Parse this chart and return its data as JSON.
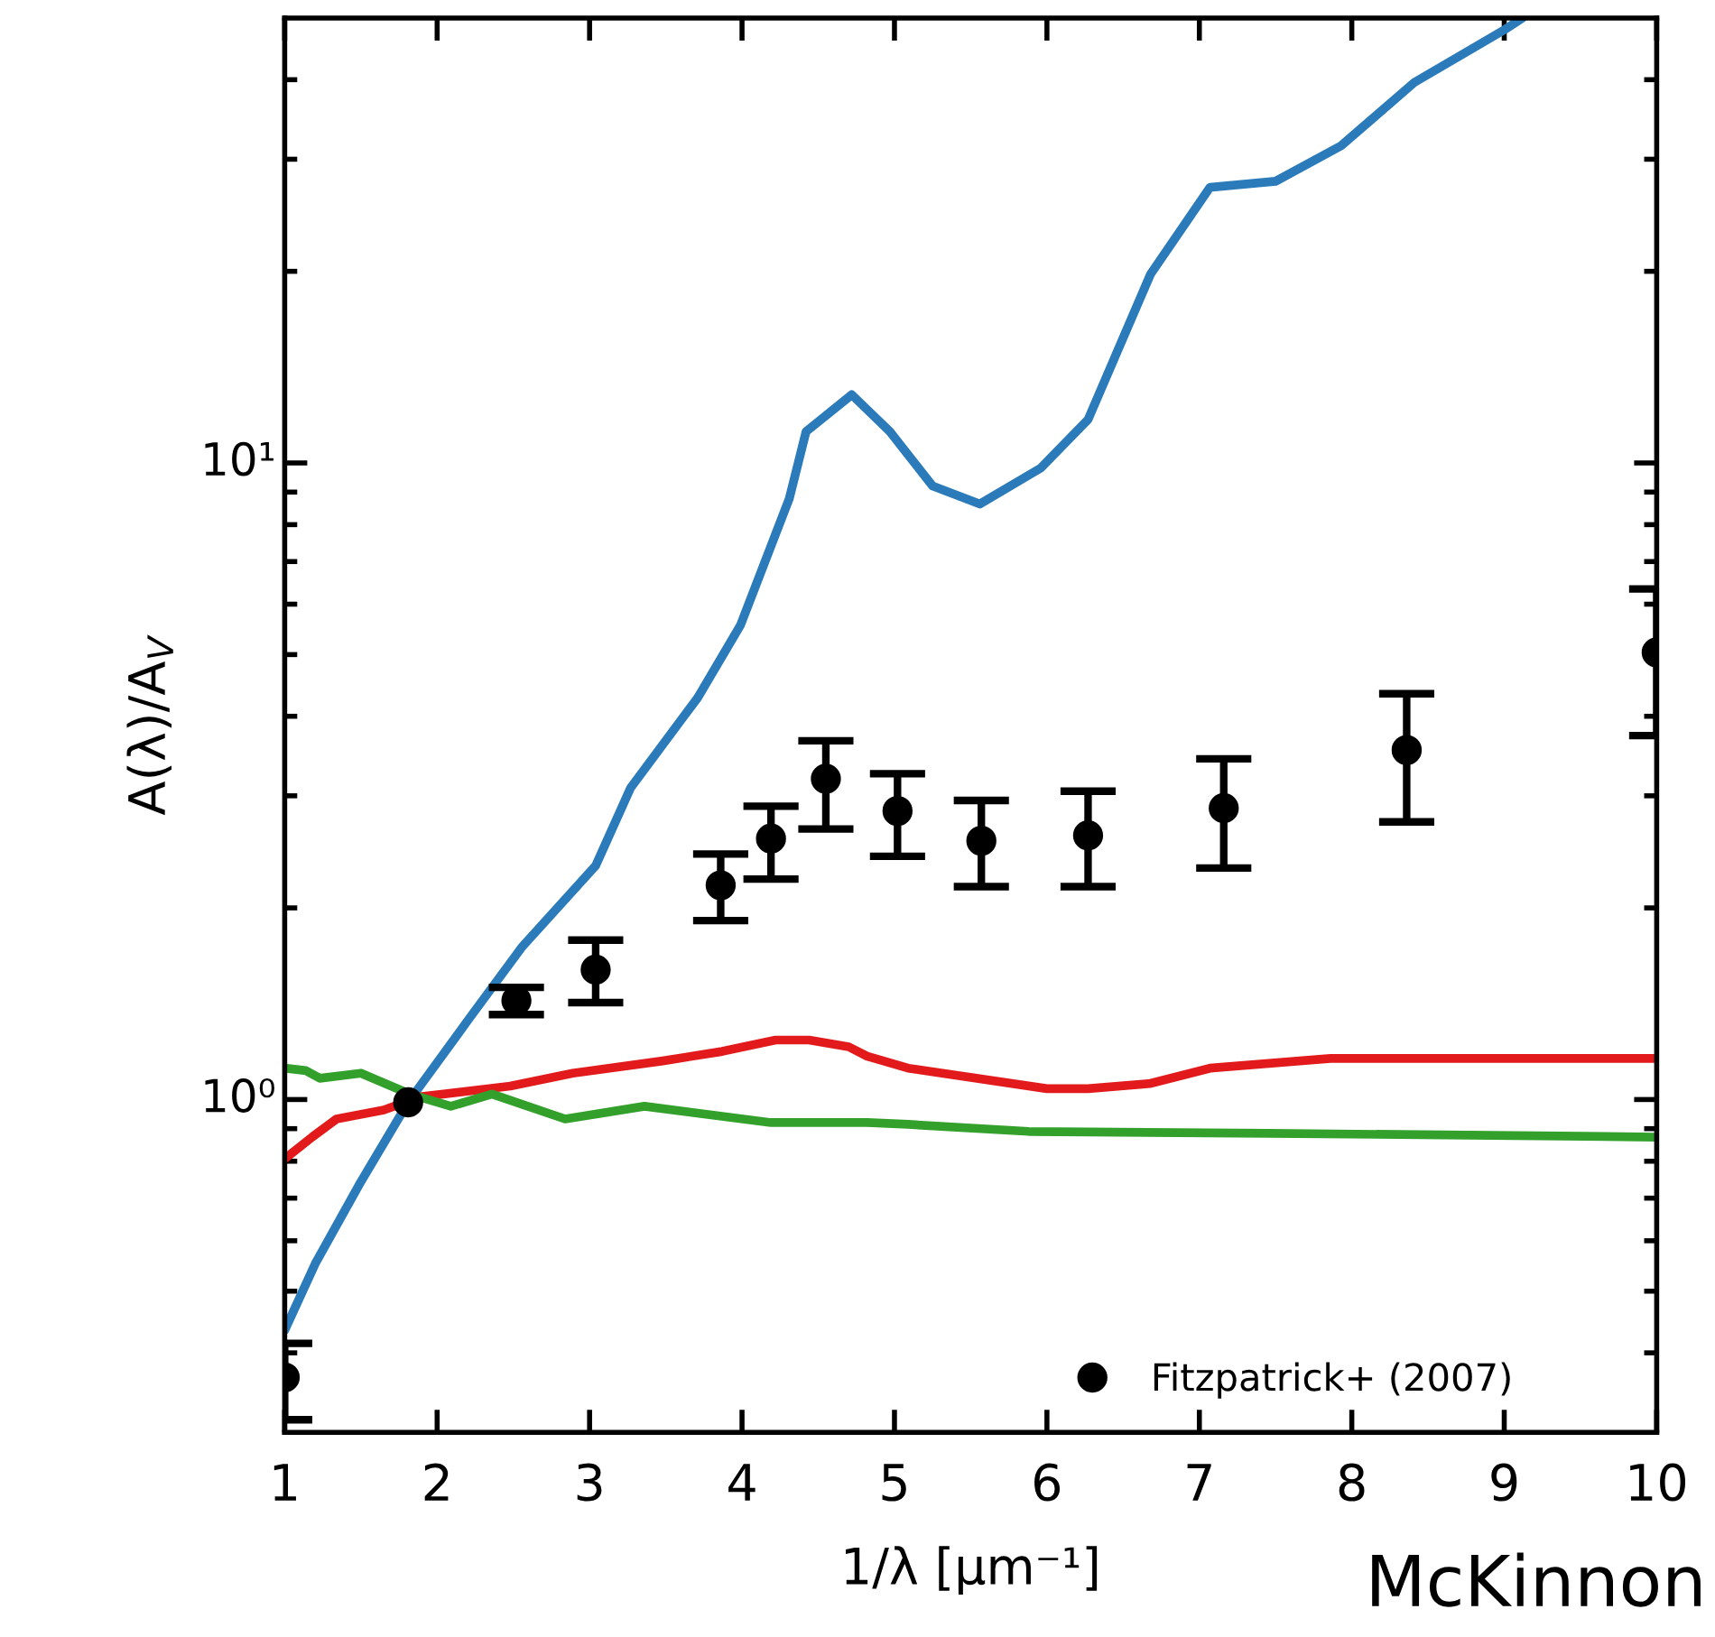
{
  "chart_data": {
    "type": "line",
    "xlabel": "1/λ [μm⁻¹]",
    "ylabel": "A(λ)/A$_{V}$",
    "annotations": [
      "McKinnon"
    ],
    "log": "y",
    "xlim": [
      1,
      10
    ],
    "ylim": [
      0.3,
      50
    ],
    "xticks": [
      1,
      2,
      3,
      4,
      5,
      6,
      7,
      8,
      9,
      10
    ],
    "yticks": [
      {
        "value": 0.4,
        "label": null
      },
      {
        "value": 0.5,
        "label": null
      },
      {
        "value": 0.6,
        "label": null
      },
      {
        "value": 0.7,
        "label": null
      },
      {
        "value": 0.8,
        "label": null
      },
      {
        "value": 0.9,
        "label": null
      },
      {
        "value": 1,
        "label": "10⁰"
      },
      {
        "value": 2,
        "label": null
      },
      {
        "value": 3,
        "label": null
      },
      {
        "value": 4,
        "label": null
      },
      {
        "value": 5,
        "label": null
      },
      {
        "value": 6,
        "label": null
      },
      {
        "value": 7,
        "label": null
      },
      {
        "value": 8,
        "label": null
      },
      {
        "value": 9,
        "label": null
      },
      {
        "value": 10,
        "label": "10¹"
      },
      {
        "value": 20,
        "label": null
      },
      {
        "value": 30,
        "label": null
      },
      {
        "value": 40,
        "label": null
      }
    ],
    "grid": false,
    "legend": "bottom right",
    "line_style": "solid",
    "series": [
      {
        "color": "#2b7bba",
        "marker": "none",
        "x": [
          1.0,
          1.2,
          1.5,
          1.81,
          2.21,
          2.56,
          3.04,
          3.27,
          3.71,
          3.99,
          4.31,
          4.42,
          4.72,
          4.97,
          5.25,
          5.56,
          5.96,
          6.27,
          6.68,
          7.07,
          7.5,
          7.93,
          8.41,
          9.0,
          9.12
        ],
        "values": [
          0.434,
          0.552,
          0.743,
          0.99,
          1.34,
          1.74,
          2.33,
          3.09,
          4.28,
          5.56,
          8.79,
          11.2,
          12.8,
          11.2,
          9.2,
          8.62,
          9.82,
          11.7,
          19.8,
          27.1,
          27.7,
          31.5,
          39.6,
          47.9,
          50
        ]
      },
      {
        "color": "#e31a1c",
        "marker": "none",
        "x": [
          1.0,
          1.18,
          1.34,
          1.65,
          1.89,
          2.48,
          2.89,
          3.48,
          3.87,
          4.22,
          4.44,
          4.7,
          4.82,
          5.09,
          6.0,
          6.27,
          6.68,
          7.07,
          7.86,
          8.64,
          10.0
        ],
        "values": [
          0.807,
          0.873,
          0.932,
          0.963,
          1.01,
          1.05,
          1.1,
          1.15,
          1.19,
          1.24,
          1.24,
          1.21,
          1.17,
          1.12,
          1.04,
          1.04,
          1.06,
          1.12,
          1.16,
          1.16,
          1.16
        ]
      },
      {
        "color": "#33a02c",
        "marker": "none",
        "x": [
          1.0,
          1.14,
          1.23,
          1.5,
          1.82,
          2.09,
          2.36,
          2.84,
          3.36,
          4.19,
          4.82,
          5.09,
          5.88,
          7.46,
          10.0
        ],
        "values": [
          1.12,
          1.11,
          1.08,
          1.1,
          1.02,
          0.976,
          1.02,
          0.932,
          0.976,
          0.92,
          0.92,
          0.914,
          0.891,
          0.885,
          0.873
        ]
      },
      {
        "type": "scatter",
        "name": "Fitzpatrick+ (2007)",
        "color": "#000000",
        "marker": "circle",
        "x": [
          1.0,
          1.81,
          2.52,
          3.04,
          3.86,
          4.19,
          4.55,
          5.02,
          5.57,
          6.27,
          7.16,
          8.36,
          10.0
        ],
        "values": [
          0.366,
          0.99,
          1.43,
          1.6,
          2.17,
          2.57,
          3.19,
          2.84,
          2.55,
          2.6,
          2.87,
          3.54,
          5.04
        ],
        "errors": [
          [
            0.314,
            0.414
          ],
          null,
          [
            1.36,
            1.5
          ],
          [
            1.42,
            1.78
          ],
          [
            1.91,
            2.43
          ],
          [
            2.22,
            2.89
          ],
          [
            2.66,
            3.66
          ],
          [
            2.41,
            3.25
          ],
          [
            2.16,
            2.95
          ],
          [
            2.16,
            3.05
          ],
          [
            2.31,
            3.43
          ],
          [
            2.73,
            4.34
          ],
          [
            3.73,
            6.34
          ]
        ]
      }
    ]
  }
}
